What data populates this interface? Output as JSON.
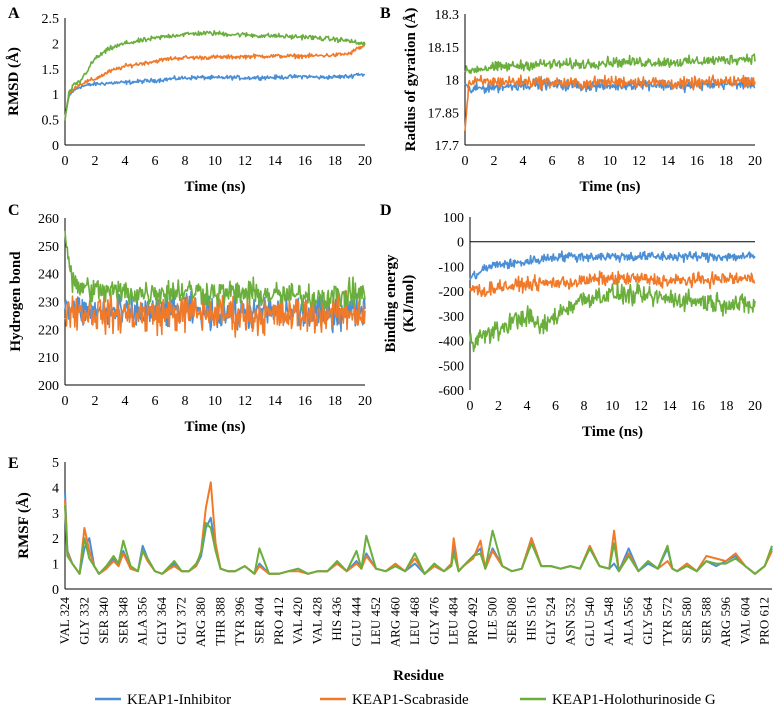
{
  "colors": {
    "inhibitor": "#4a8fd6",
    "scabraside": "#f07a2a",
    "holothurinoside": "#6aae3c"
  },
  "legend": {
    "placement": "bottom",
    "entries": [
      "KEAP1-Inhibitor",
      "KEAP1-Scabraside",
      "KEAP1-Holothurinoside G"
    ]
  },
  "chart_data": [
    {
      "panel": "A",
      "type": "line",
      "xlabel": "Time (ns)",
      "ylabel": "RMSD (Å)",
      "xlim": [
        0,
        20
      ],
      "ylim": [
        0,
        2.5
      ],
      "xticks": [
        "0",
        "2",
        "4",
        "6",
        "8",
        "10",
        "12",
        "14",
        "16",
        "18",
        "20"
      ],
      "yticks": [
        "0",
        "0.5",
        "1",
        "1.5",
        "2",
        "2.5"
      ],
      "x": [
        0,
        0.25,
        0.5,
        1,
        2,
        3,
        4,
        5,
        6,
        7,
        8,
        9,
        10,
        11,
        12,
        13,
        14,
        15,
        16,
        17,
        18,
        19,
        19.5,
        20
      ],
      "series": [
        {
          "name": "KEAP1-Inhibitor",
          "values": [
            0.5,
            0.95,
            1.05,
            1.15,
            1.2,
            1.22,
            1.23,
            1.25,
            1.27,
            1.3,
            1.32,
            1.33,
            1.32,
            1.33,
            1.32,
            1.33,
            1.33,
            1.34,
            1.35,
            1.33,
            1.34,
            1.35,
            1.4,
            1.38
          ],
          "noise": 0.06
        },
        {
          "name": "KEAP1-Scabraside",
          "values": [
            0.5,
            1.0,
            1.1,
            1.2,
            1.3,
            1.45,
            1.55,
            1.6,
            1.65,
            1.7,
            1.72,
            1.72,
            1.73,
            1.73,
            1.74,
            1.75,
            1.75,
            1.75,
            1.75,
            1.76,
            1.77,
            1.8,
            1.9,
            1.95
          ],
          "noise": 0.06
        },
        {
          "name": "KEAP1-Holothurinoside G",
          "values": [
            0.5,
            1.0,
            1.15,
            1.25,
            1.7,
            1.9,
            2.0,
            2.05,
            2.1,
            2.15,
            2.18,
            2.2,
            2.2,
            2.18,
            2.17,
            2.15,
            2.15,
            2.13,
            2.13,
            2.1,
            2.08,
            2.05,
            2.0,
            2.0
          ],
          "noise": 0.07
        }
      ]
    },
    {
      "panel": "B",
      "type": "line",
      "xlabel": "Time (ns)",
      "ylabel": "Radius of gyration (Å)",
      "xlim": [
        0,
        20
      ],
      "ylim": [
        17.7,
        18.3
      ],
      "xticks": [
        "0",
        "2",
        "4",
        "6",
        "8",
        "10",
        "12",
        "14",
        "16",
        "18",
        "20"
      ],
      "yticks": [
        "17.7",
        "17.85",
        "18",
        "18.15",
        "18.3"
      ],
      "x": [
        0,
        0.25,
        1,
        3,
        5,
        8,
        10,
        12,
        15,
        18,
        20
      ],
      "series": [
        {
          "name": "KEAP1-Inhibitor",
          "values": [
            17.98,
            17.95,
            17.96,
            17.97,
            17.98,
            17.97,
            17.97,
            17.98,
            17.97,
            17.98,
            17.98
          ],
          "noise": 0.035
        },
        {
          "name": "KEAP1-Scabraside",
          "values": [
            17.76,
            17.98,
            17.99,
            17.99,
            17.99,
            17.98,
            17.99,
            17.99,
            17.98,
            17.99,
            18.0
          ],
          "noise": 0.04
        },
        {
          "name": "KEAP1-Holothurinoside G",
          "values": [
            18.03,
            18.04,
            18.05,
            18.06,
            18.07,
            18.07,
            18.08,
            18.08,
            18.08,
            18.09,
            18.1
          ],
          "noise": 0.035
        }
      ]
    },
    {
      "panel": "C",
      "type": "line",
      "xlabel": "Time (ns)",
      "ylabel": "Hydrogen bond",
      "xlim": [
        0,
        20
      ],
      "ylim": [
        200,
        260
      ],
      "xticks": [
        "0",
        "2",
        "4",
        "6",
        "8",
        "10",
        "12",
        "14",
        "16",
        "18",
        "20"
      ],
      "yticks": [
        "200",
        "210",
        "220",
        "230",
        "240",
        "250",
        "260"
      ],
      "x": [
        0,
        0.5,
        2,
        5,
        8,
        10,
        12,
        15,
        18,
        20
      ],
      "series": [
        {
          "name": "KEAP1-Inhibitor",
          "values": [
            228,
            227,
            226,
            226,
            227,
            226,
            226,
            226,
            226,
            227
          ],
          "noise": 9
        },
        {
          "name": "KEAP1-Scabraside",
          "values": [
            228,
            227,
            226,
            225,
            226,
            226,
            225,
            225,
            226,
            226
          ],
          "noise": 10
        },
        {
          "name": "KEAP1-Holothurinoside G",
          "values": [
            255,
            236,
            234,
            233,
            234,
            233,
            233,
            232,
            232,
            233
          ],
          "noise": 7
        }
      ]
    },
    {
      "panel": "D",
      "type": "line",
      "xlabel": "Time (ns)",
      "ylabel": "Binding energy (KJ/mol)",
      "xlim": [
        0,
        20
      ],
      "ylim": [
        -600,
        100
      ],
      "xticks": [
        "0",
        "2",
        "4",
        "6",
        "8",
        "10",
        "12",
        "14",
        "16",
        "18",
        "20"
      ],
      "yticks": [
        "-600",
        "-500",
        "-400",
        "-300",
        "-200",
        "-100",
        "0",
        "100"
      ],
      "x": [
        0,
        1,
        2,
        3,
        4,
        5,
        6,
        7,
        8,
        9,
        10,
        12,
        14,
        16,
        18,
        20
      ],
      "series": [
        {
          "name": "KEAP1-Inhibitor",
          "values": [
            -150,
            -110,
            -90,
            -90,
            -80,
            -70,
            -60,
            -60,
            -60,
            -60,
            -60,
            -60,
            -60,
            -60,
            -60,
            -60
          ],
          "noise": 30
        },
        {
          "name": "KEAP1-Scabraside",
          "values": [
            -190,
            -200,
            -180,
            -180,
            -170,
            -170,
            -165,
            -165,
            -160,
            -150,
            -150,
            -150,
            -160,
            -155,
            -150,
            -150
          ],
          "noise": 40
        },
        {
          "name": "KEAP1-Holothurinoside G",
          "values": [
            -400,
            -380,
            -360,
            -320,
            -300,
            -350,
            -300,
            -260,
            -230,
            -220,
            -210,
            -220,
            -230,
            -240,
            -250,
            -260
          ],
          "noise": 60
        }
      ]
    },
    {
      "panel": "E",
      "type": "line",
      "xlabel": "Residue",
      "ylabel": "RMSF (Å)",
      "xlim": [
        324,
        615
      ],
      "ylim": [
        0,
        5
      ],
      "yticks": [
        "0",
        "1",
        "2",
        "3",
        "4",
        "5"
      ],
      "residue_ticks": [
        "VAL 324",
        "GLY 332",
        "SER 340",
        "SER 348",
        "ALA 356",
        "GLY 364",
        "GLY 372",
        "ARG 380",
        "THR 388",
        "TYR 396",
        "SER 404",
        "PRO 412",
        "VAL 420",
        "VAL 428",
        "HIS 436",
        "GLU 444",
        "LEU 452",
        "ARG 460",
        "LEU 468",
        "GLY 476",
        "LEU 484",
        "PRO 492",
        "ILE 500",
        "SER 508",
        "HIS 516",
        "GLY 524",
        "ASN 532",
        "GLU 540",
        "ALA 548",
        "ALA 556",
        "GLY 564",
        "TYR 572",
        "SER 580",
        "SER 588",
        "ARG 596",
        "VAL 604",
        "PRO 612"
      ],
      "x": [
        324,
        325,
        327,
        330,
        332,
        334,
        336,
        338,
        341,
        344,
        346,
        348,
        351,
        354,
        356,
        358,
        361,
        364,
        367,
        369,
        372,
        375,
        378,
        380,
        382,
        384,
        386,
        388,
        391,
        394,
        398,
        402,
        404,
        408,
        412,
        416,
        420,
        424,
        428,
        432,
        436,
        440,
        444,
        446,
        448,
        452,
        456,
        460,
        464,
        468,
        472,
        476,
        480,
        483,
        484,
        486,
        488,
        492,
        495,
        497,
        500,
        504,
        508,
        512,
        516,
        520,
        524,
        528,
        532,
        536,
        540,
        544,
        548,
        550,
        552,
        556,
        560,
        564,
        568,
        572,
        574,
        576,
        580,
        584,
        588,
        592,
        596,
        600,
        604,
        608,
        612,
        615
      ],
      "series": [
        {
          "name": "KEAP1-Inhibitor",
          "values": [
            3.8,
            1.5,
            1.0,
            0.6,
            1.6,
            2.0,
            0.9,
            0.6,
            0.8,
            1.2,
            0.9,
            1.5,
            0.8,
            0.7,
            1.7,
            1.2,
            0.7,
            0.6,
            0.8,
            1.0,
            0.7,
            0.7,
            0.9,
            1.3,
            2.4,
            2.8,
            1.6,
            0.8,
            0.7,
            0.7,
            0.9,
            0.6,
            1.0,
            0.6,
            0.6,
            0.7,
            0.8,
            0.6,
            0.7,
            0.7,
            1.0,
            0.7,
            1.1,
            0.8,
            1.4,
            0.8,
            0.7,
            0.9,
            0.7,
            1.0,
            0.6,
            0.9,
            0.7,
            0.9,
            1.7,
            0.7,
            0.9,
            1.3,
            1.6,
            0.8,
            1.6,
            0.9,
            0.7,
            0.8,
            2.0,
            0.9,
            0.9,
            0.8,
            0.9,
            0.8,
            1.6,
            0.9,
            0.8,
            1.0,
            0.7,
            1.6,
            0.7,
            1.0,
            0.8,
            1.6,
            0.8,
            0.7,
            1.0,
            0.7,
            1.1,
            0.9,
            1.1,
            1.3,
            0.9,
            0.6,
            0.9,
            1.6
          ]
        },
        {
          "name": "KEAP1-Scabraside",
          "values": [
            3.5,
            1.4,
            1.0,
            0.6,
            2.4,
            1.5,
            0.9,
            0.6,
            0.8,
            1.1,
            0.9,
            1.4,
            0.8,
            0.7,
            1.5,
            1.1,
            0.7,
            0.6,
            0.8,
            0.9,
            0.7,
            0.7,
            0.9,
            1.5,
            3.2,
            4.2,
            1.8,
            0.8,
            0.7,
            0.7,
            0.9,
            0.6,
            0.9,
            0.6,
            0.6,
            0.7,
            0.7,
            0.6,
            0.7,
            0.7,
            1.0,
            0.7,
            1.0,
            0.8,
            1.3,
            0.8,
            0.7,
            1.0,
            0.7,
            1.2,
            0.6,
            0.9,
            0.7,
            1.0,
            2.0,
            0.7,
            0.9,
            1.2,
            1.9,
            0.8,
            1.5,
            0.9,
            0.7,
            0.8,
            2.0,
            0.9,
            0.9,
            0.8,
            0.9,
            0.8,
            1.7,
            0.9,
            0.8,
            2.3,
            0.7,
            1.4,
            0.7,
            1.1,
            0.8,
            1.1,
            0.8,
            0.7,
            1.0,
            0.7,
            1.3,
            1.2,
            1.1,
            1.4,
            0.9,
            0.6,
            0.9,
            1.5
          ]
        },
        {
          "name": "KEAP1-Holothurinoside G",
          "values": [
            3.3,
            1.3,
            1.0,
            0.6,
            2.0,
            1.2,
            0.9,
            0.6,
            0.9,
            1.3,
            1.0,
            1.9,
            0.9,
            0.7,
            1.5,
            1.2,
            0.7,
            0.6,
            0.9,
            1.1,
            0.7,
            0.7,
            1.0,
            1.4,
            2.6,
            2.4,
            1.5,
            0.8,
            0.7,
            0.7,
            0.9,
            0.6,
            1.6,
            0.6,
            0.6,
            0.7,
            0.8,
            0.6,
            0.7,
            0.7,
            1.1,
            0.7,
            1.5,
            0.8,
            2.1,
            0.8,
            0.7,
            0.9,
            0.7,
            1.4,
            0.6,
            1.0,
            0.7,
            0.9,
            1.4,
            0.7,
            0.9,
            1.3,
            1.4,
            0.8,
            2.3,
            0.9,
            0.7,
            0.8,
            1.8,
            0.9,
            0.9,
            0.8,
            0.9,
            0.8,
            1.6,
            0.9,
            0.8,
            1.8,
            0.7,
            1.3,
            0.7,
            1.1,
            0.8,
            1.7,
            0.8,
            0.7,
            0.9,
            0.7,
            1.1,
            1.0,
            1.0,
            1.2,
            0.9,
            0.6,
            0.9,
            1.7
          ]
        }
      ]
    }
  ]
}
